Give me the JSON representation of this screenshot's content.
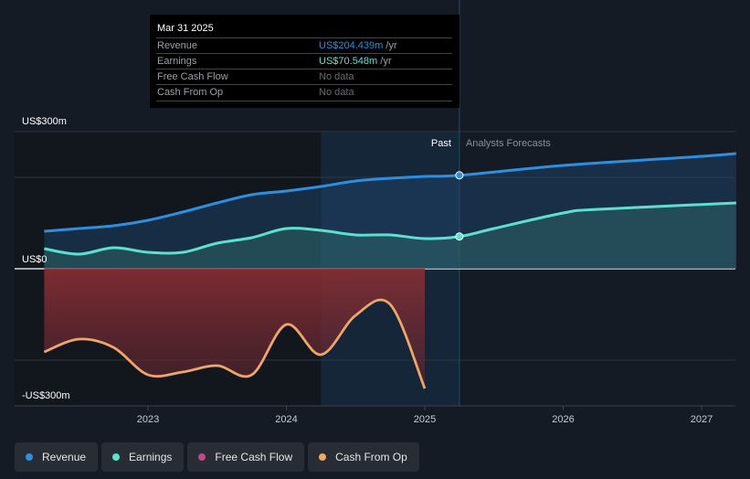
{
  "tooltip": {
    "date": "Mar 31 2025",
    "rows": [
      {
        "label": "Revenue",
        "value": "US$204.439m",
        "unit": "/yr",
        "color": "#2d8fe0"
      },
      {
        "label": "Earnings",
        "value": "US$70.548m",
        "unit": "/yr",
        "color": "#5ee0cf"
      },
      {
        "label": "Free Cash Flow",
        "value": "No data",
        "unit": "",
        "color": "#666c73"
      },
      {
        "label": "Cash From Op",
        "value": "No data",
        "unit": "",
        "color": "#666c73"
      }
    ]
  },
  "chart_data": {
    "type": "line",
    "ylim": [
      -300,
      300
    ],
    "y_tick_labels": [
      "US$300m",
      "US$0",
      "-US$300m"
    ],
    "x_ticks": [
      2023,
      2024,
      2025,
      2026,
      2027
    ],
    "x_tick_labels": [
      "2023",
      "2024",
      "2025",
      "2026",
      "2027"
    ],
    "past_label": "Past",
    "forecast_label": "Analysts Forecasts",
    "divider_x": 2025.25,
    "highlight_range": [
      2024.25,
      2025.25
    ],
    "series": [
      {
        "name": "Revenue",
        "color": "#2d8fe0",
        "x": [
          2022.25,
          2022.5,
          2022.75,
          2023,
          2023.25,
          2023.5,
          2023.75,
          2024,
          2024.25,
          2024.5,
          2024.75,
          2025,
          2025.25,
          2026,
          2027,
          2027.25
        ],
        "y": [
          82,
          88,
          94,
          106,
          124,
          144,
          162,
          170,
          180,
          192,
          198,
          202,
          204.4,
          226,
          246,
          252
        ]
      },
      {
        "name": "Earnings",
        "color": "#5ee0cf",
        "x": [
          2022.25,
          2022.5,
          2022.75,
          2023,
          2023.25,
          2023.5,
          2023.75,
          2024,
          2024.25,
          2024.5,
          2024.75,
          2025,
          2025.25,
          2025.5,
          2026,
          2026.25,
          2027.25
        ],
        "y": [
          44,
          32,
          46,
          36,
          36,
          56,
          68,
          88,
          84,
          74,
          74,
          66,
          70.5,
          88,
          122,
          130,
          144
        ]
      },
      {
        "name": "Free Cash Flow",
        "color": "#c2468a",
        "x": [
          2022.25,
          2022.5,
          2022.75,
          2023,
          2023.25,
          2023.5,
          2023.75,
          2024,
          2024.25,
          2024.5,
          2024.75,
          2025
        ],
        "y": [
          -182,
          -154,
          -172,
          -232,
          -226,
          -212,
          -232,
          -122,
          -188,
          -102,
          -78,
          -262
        ]
      },
      {
        "name": "Cash From Op",
        "color": "#e8ad5f",
        "x": [
          2022.25,
          2022.5,
          2022.75,
          2023,
          2023.25,
          2023.5,
          2023.75,
          2024,
          2024.25,
          2024.5,
          2024.75,
          2025
        ],
        "y": [
          -182,
          -154,
          -172,
          -232,
          -226,
          -212,
          -232,
          -122,
          -188,
          -102,
          -78,
          -262
        ]
      }
    ]
  },
  "legend": [
    {
      "label": "Revenue",
      "color": "#2d8fe0"
    },
    {
      "label": "Earnings",
      "color": "#5ee0cf"
    },
    {
      "label": "Free Cash Flow",
      "color": "#c2468a"
    },
    {
      "label": "Cash From Op",
      "color": "#e8ad5f"
    }
  ]
}
